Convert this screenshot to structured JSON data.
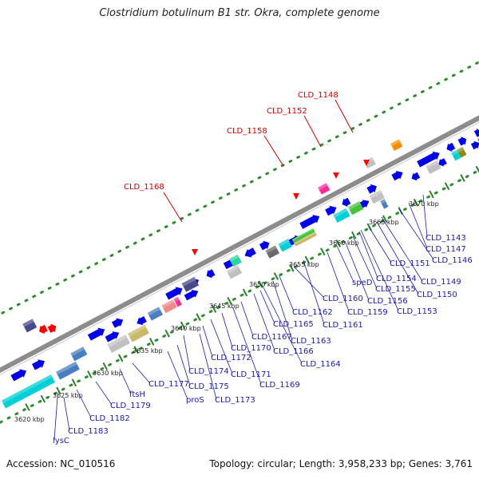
{
  "title": "Clostridium botulinum B1 str. Okra, complete genome",
  "footer": {
    "accession": "Accession: NC_010516",
    "info": "Topology: circular; Length: 3,958,233 bp; Genes: 3,761"
  },
  "colors": {
    "backbone": "#8c8c8c",
    "gene_forward": "#0000e8",
    "gene_reverse": "#0000e8",
    "dots": "#2e8b2e",
    "ticks": "#2e7d2e",
    "label_blue": "#1a1aa8",
    "label_red": "#cc0000",
    "highlight": "#ff0000",
    "cyan": "#00cfd6",
    "grey": "#c0c0c0",
    "steel": "#4a7fbf",
    "khaki": "#c8b86a",
    "salmon": "#ef8a8a",
    "magenta": "#ff2d9a",
    "dark_slate": "#4a4a8a",
    "green": "#43c43a",
    "olive": "#8a8a20",
    "orange": "#ff8c00",
    "dark_grey": "#6a6a6a"
  },
  "scale_labels": [
    "3620 kbp",
    "3625 kbp",
    "3630 kbp",
    "3635 kbp",
    "3640 kbp",
    "3645 kbp",
    "3650 kbp",
    "3655 kbp",
    "3660 kbp",
    "3665 kbp",
    "3670 kbp"
  ],
  "highlight_labels": [
    "CLD_1168",
    "CLD_1158",
    "CLD_1152",
    "CLD_1148"
  ],
  "gene_labels": [
    "lysC",
    "CLD_1183",
    "CLD_1182",
    "CLD_1179",
    "ftsH",
    "CLD_1177",
    "proS",
    "CLD_1175",
    "CLD_1173",
    "CLD_1174",
    "CLD_1171",
    "CLD_1172",
    "CLD_1169",
    "CLD_1170",
    "CLD_1167",
    "CLD_1166",
    "CLD_1164",
    "CLD_1165",
    "CLD_1163",
    "CLD_1162",
    "CLD_1161",
    "CLD_1160",
    "CLD_1159",
    "speD",
    "CLD_1156",
    "CLD_1153",
    "CLD_1155",
    "CLD_1154",
    "CLD_1150",
    "CLD_1149",
    "CLD_1151",
    "CLD_1146",
    "CLD_1147",
    "CLD_1143"
  ]
}
